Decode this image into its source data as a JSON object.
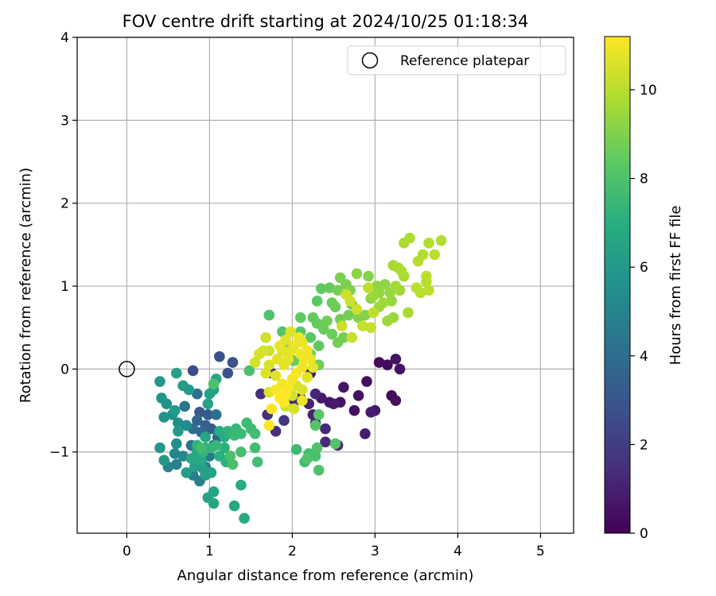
{
  "chart_data": {
    "type": "scatter",
    "title": "FOV centre drift starting at 2024/10/25 01:18:34",
    "xlabel": "Angular distance from reference (arcmin)",
    "ylabel": "Rotation from reference (arcmin)",
    "xlim": [
      -0.6,
      5.4
    ],
    "ylim": [
      -1.98,
      4.0
    ],
    "x_ticks": [
      0,
      1,
      2,
      3,
      4,
      5
    ],
    "y_ticks": [
      -1,
      0,
      1,
      2,
      3,
      4
    ],
    "x_tick_labels": [
      "0",
      "1",
      "2",
      "3",
      "4",
      "5"
    ],
    "y_tick_labels": [
      "−1",
      "0",
      "1",
      "2",
      "3",
      "4"
    ],
    "grid": true,
    "legend": {
      "location": "top-right",
      "label": "Reference platepar"
    },
    "reference_point": {
      "x": 0,
      "y": 0
    },
    "colorbar": {
      "label": "Hours from first FF file",
      "range": [
        0,
        11.2
      ],
      "ticks": [
        0,
        2,
        4,
        6,
        8,
        10
      ],
      "tick_labels": [
        "0",
        "2",
        "4",
        "6",
        "8",
        "10"
      ],
      "colormap": "viridis"
    },
    "points": [
      [
        3.05,
        0.08,
        0.3
      ],
      [
        3.15,
        0.05,
        0.3
      ],
      [
        3.2,
        -0.32,
        0.3
      ],
      [
        3.25,
        -0.38,
        0.4
      ],
      [
        2.9,
        -0.15,
        0.4
      ],
      [
        2.8,
        -0.32,
        0.5
      ],
      [
        2.75,
        -0.5,
        0.5
      ],
      [
        2.62,
        -0.22,
        0.6
      ],
      [
        2.58,
        -0.4,
        0.6
      ],
      [
        2.45,
        -0.4,
        0.7
      ],
      [
        2.35,
        -0.35,
        0.8
      ],
      [
        2.5,
        -0.42,
        0.8
      ],
      [
        2.95,
        -0.52,
        0.9
      ],
      [
        2.88,
        -0.78,
        0.9
      ],
      [
        3.3,
        0.0,
        0.5
      ],
      [
        3.25,
        0.12,
        0.6
      ],
      [
        3.0,
        -0.5,
        0.7
      ],
      [
        2.22,
        -0.05,
        0.9
      ],
      [
        2.1,
        -0.35,
        1.0
      ],
      [
        2.2,
        -0.42,
        1.1
      ],
      [
        2.25,
        -0.55,
        1.1
      ],
      [
        2.28,
        -0.65,
        1.2
      ],
      [
        2.4,
        -0.72,
        1.3
      ],
      [
        2.4,
        -0.88,
        1.3
      ],
      [
        2.55,
        -0.92,
        1.4
      ],
      [
        2.28,
        -0.3,
        1.2
      ],
      [
        2.02,
        -0.4,
        1.3
      ],
      [
        1.75,
        -0.05,
        1.4
      ],
      [
        1.8,
        -0.75,
        1.5
      ],
      [
        1.7,
        -0.55,
        1.6
      ],
      [
        1.9,
        -0.62,
        1.7
      ],
      [
        1.62,
        -0.3,
        1.5
      ],
      [
        0.8,
        -0.02,
        2.6
      ],
      [
        1.12,
        0.15,
        2.7
      ],
      [
        1.28,
        0.08,
        2.8
      ],
      [
        1.22,
        -0.05,
        2.9
      ],
      [
        0.88,
        -0.52,
        3.0
      ],
      [
        0.98,
        -0.55,
        3.2
      ],
      [
        1.02,
        -0.72,
        3.3
      ],
      [
        1.1,
        -0.82,
        3.4
      ],
      [
        0.95,
        -0.68,
        3.5
      ],
      [
        1.05,
        -0.92,
        3.6
      ],
      [
        0.85,
        -0.62,
        3.7
      ],
      [
        0.9,
        -0.76,
        3.8
      ],
      [
        0.8,
        -0.72,
        4.0
      ],
      [
        1.08,
        -0.55,
        4.1
      ],
      [
        0.85,
        -0.3,
        4.2
      ],
      [
        0.7,
        -0.45,
        4.3
      ],
      [
        0.78,
        -0.92,
        4.4
      ],
      [
        1.0,
        -1.05,
        4.5
      ],
      [
        0.95,
        -1.18,
        4.6
      ],
      [
        0.88,
        -1.35,
        4.7
      ],
      [
        0.8,
        -1.28,
        4.8
      ],
      [
        0.6,
        -1.15,
        4.9
      ],
      [
        0.5,
        -1.18,
        5.0
      ],
      [
        0.58,
        -1.02,
        5.1
      ],
      [
        0.68,
        -1.05,
        5.2
      ],
      [
        0.72,
        -0.68,
        5.3
      ],
      [
        0.62,
        -0.65,
        5.4
      ],
      [
        0.6,
        -0.9,
        5.5
      ],
      [
        0.55,
        -0.55,
        5.5
      ],
      [
        0.45,
        -0.58,
        5.6
      ],
      [
        0.48,
        -0.42,
        5.7
      ],
      [
        0.42,
        -0.35,
        5.8
      ],
      [
        0.4,
        -0.15,
        5.9
      ],
      [
        0.4,
        -0.95,
        5.9
      ],
      [
        0.45,
        -1.1,
        6.0
      ],
      [
        0.58,
        -0.5,
        6.0
      ],
      [
        0.62,
        -0.75,
        6.1
      ],
      [
        0.75,
        -0.25,
        6.1
      ],
      [
        0.68,
        -0.2,
        6.2
      ],
      [
        0.72,
        -1.25,
        6.2
      ],
      [
        0.82,
        -1.18,
        6.3
      ],
      [
        0.92,
        -1.2,
        6.3
      ],
      [
        0.95,
        -1.28,
        6.4
      ],
      [
        1.02,
        -1.25,
        6.4
      ],
      [
        0.98,
        -1.55,
        6.5
      ],
      [
        1.05,
        -1.48,
        6.5
      ],
      [
        1.05,
        -1.62,
        6.6
      ],
      [
        0.95,
        -0.82,
        6.6
      ],
      [
        0.85,
        -1.0,
        6.7
      ],
      [
        0.78,
        -1.08,
        6.7
      ],
      [
        0.9,
        -1.1,
        6.8
      ],
      [
        0.95,
        -0.95,
        6.8
      ],
      [
        0.6,
        -0.05,
        6.3
      ],
      [
        0.98,
        -0.42,
        6.4
      ],
      [
        1.0,
        -0.3,
        6.4
      ],
      [
        1.05,
        -0.25,
        6.5
      ],
      [
        1.08,
        -0.12,
        6.6
      ],
      [
        1.3,
        -1.65,
        6.7
      ],
      [
        1.42,
        -1.8,
        6.8
      ],
      [
        1.38,
        -1.4,
        6.9
      ],
      [
        1.12,
        -0.75,
        6.9
      ],
      [
        1.18,
        -0.82,
        7.0
      ],
      [
        1.12,
        -1.05,
        7.0
      ],
      [
        1.2,
        -1.12,
        7.1
      ],
      [
        1.18,
        -0.95,
        7.1
      ],
      [
        1.22,
        -0.75,
        7.2
      ],
      [
        0.85,
        -0.92,
        7.2
      ],
      [
        0.92,
        -1.0,
        7.3
      ],
      [
        1.02,
        -0.95,
        7.3
      ],
      [
        1.08,
        -0.92,
        7.4
      ],
      [
        1.32,
        -0.72,
        7.4
      ],
      [
        1.3,
        -0.8,
        7.5
      ],
      [
        1.38,
        -0.78,
        7.5
      ],
      [
        1.45,
        -0.65,
        7.6
      ],
      [
        1.5,
        -0.72,
        7.6
      ],
      [
        1.55,
        -0.78,
        7.7
      ],
      [
        1.55,
        -0.95,
        7.7
      ],
      [
        1.58,
        -1.12,
        7.8
      ],
      [
        1.38,
        -1.0,
        7.8
      ],
      [
        1.25,
        -1.05,
        7.9
      ],
      [
        1.28,
        -1.15,
        7.9
      ],
      [
        1.48,
        -0.02,
        7.9
      ],
      [
        1.05,
        -0.18,
        8.0
      ],
      [
        0.9,
        -0.95,
        7.7
      ],
      [
        2.05,
        -0.97,
        7.6
      ],
      [
        2.15,
        -1.12,
        7.7
      ],
      [
        2.2,
        -1.02,
        7.8
      ],
      [
        2.28,
        -1.05,
        7.9
      ],
      [
        2.3,
        -0.95,
        8.0
      ],
      [
        2.32,
        -1.22,
        8.0
      ],
      [
        2.52,
        -0.9,
        8.1
      ],
      [
        2.18,
        -1.08,
        8.1
      ],
      [
        2.28,
        -0.68,
        8.2
      ],
      [
        2.32,
        -0.55,
        8.3
      ],
      [
        1.72,
        0.65,
        8.0
      ],
      [
        1.88,
        0.45,
        8.1
      ],
      [
        2.1,
        0.45,
        8.2
      ],
      [
        2.22,
        0.38,
        8.3
      ],
      [
        2.32,
        0.28,
        8.4
      ],
      [
        2.1,
        0.62,
        8.4
      ],
      [
        2.25,
        0.62,
        8.5
      ],
      [
        2.3,
        0.55,
        8.5
      ],
      [
        2.38,
        0.48,
        8.6
      ],
      [
        2.48,
        0.42,
        8.6
      ],
      [
        2.42,
        0.58,
        8.7
      ],
      [
        2.58,
        0.6,
        8.7
      ],
      [
        2.62,
        0.38,
        8.8
      ],
      [
        2.55,
        0.32,
        8.8
      ],
      [
        2.32,
        0.05,
        8.7
      ],
      [
        2.22,
        0.18,
        8.6
      ],
      [
        2.02,
        0.1,
        8.6
      ],
      [
        1.92,
        0.28,
        8.5
      ],
      [
        2.3,
        0.82,
        8.3
      ],
      [
        2.35,
        0.97,
        8.4
      ],
      [
        2.45,
        0.98,
        8.5
      ],
      [
        2.48,
        0.8,
        8.6
      ],
      [
        2.52,
        0.75,
        8.6
      ],
      [
        2.72,
        0.78,
        8.7
      ],
      [
        2.68,
        0.65,
        8.8
      ],
      [
        2.55,
        0.95,
        8.8
      ],
      [
        2.58,
        1.1,
        8.9
      ],
      [
        2.65,
        1.02,
        8.9
      ],
      [
        2.7,
        0.95,
        9.0
      ],
      [
        2.8,
        0.62,
        9.0
      ],
      [
        2.88,
        0.65,
        9.1
      ],
      [
        2.92,
        1.12,
        9.1
      ],
      [
        2.78,
        1.15,
        9.2
      ],
      [
        2.95,
        0.85,
        9.2
      ],
      [
        3.05,
        0.92,
        9.3
      ],
      [
        3.02,
        1.0,
        9.3
      ],
      [
        3.12,
        1.02,
        9.3
      ],
      [
        3.18,
        0.92,
        9.4
      ],
      [
        3.2,
        0.82,
        9.4
      ],
      [
        3.22,
        0.62,
        9.4
      ],
      [
        3.15,
        0.58,
        9.5
      ],
      [
        3.05,
        0.75,
        9.5
      ],
      [
        2.98,
        0.88,
        9.5
      ],
      [
        3.1,
        0.8,
        9.6
      ],
      [
        3.25,
        1.0,
        9.6
      ],
      [
        3.3,
        0.95,
        9.6
      ],
      [
        3.35,
        1.12,
        9.7
      ],
      [
        3.4,
        0.68,
        9.7
      ],
      [
        3.22,
        1.25,
        9.7
      ],
      [
        3.28,
        1.22,
        9.8
      ],
      [
        3.32,
        1.18,
        9.8
      ],
      [
        3.35,
        1.52,
        9.8
      ],
      [
        3.42,
        1.58,
        9.8
      ],
      [
        3.52,
        1.3,
        9.9
      ],
      [
        3.58,
        1.38,
        9.9
      ],
      [
        3.65,
        1.52,
        9.9
      ],
      [
        3.8,
        1.55,
        9.9
      ],
      [
        3.72,
        1.38,
        10.0
      ],
      [
        3.5,
        0.98,
        10.0
      ],
      [
        3.55,
        0.92,
        10.0
      ],
      [
        3.62,
        1.05,
        10.0
      ],
      [
        3.62,
        1.12,
        10.1
      ],
      [
        3.65,
        0.95,
        10.1
      ],
      [
        2.92,
        0.98,
        10.1
      ],
      [
        2.98,
        0.68,
        10.1
      ],
      [
        2.85,
        0.52,
        10.2
      ],
      [
        2.95,
        0.5,
        10.2
      ],
      [
        2.72,
        0.38,
        10.2
      ],
      [
        2.78,
        0.72,
        10.3
      ],
      [
        2.6,
        0.52,
        10.3
      ],
      [
        2.65,
        0.9,
        10.3
      ],
      [
        2.7,
        0.82,
        10.3
      ],
      [
        1.68,
        0.38,
        10.4
      ],
      [
        1.72,
        0.22,
        10.4
      ],
      [
        1.65,
        0.22,
        10.5
      ],
      [
        1.6,
        0.18,
        10.5
      ],
      [
        1.55,
        0.08,
        10.5
      ],
      [
        1.72,
        0.05,
        10.6
      ],
      [
        1.68,
        -0.05,
        10.6
      ],
      [
        1.72,
        -0.28,
        10.6
      ],
      [
        1.8,
        -0.08,
        10.7
      ],
      [
        1.82,
        0.12,
        10.7
      ],
      [
        1.88,
        0.22,
        10.7
      ],
      [
        1.9,
        0.05,
        10.8
      ],
      [
        1.95,
        0.12,
        10.8
      ],
      [
        1.98,
        0.22,
        10.8
      ],
      [
        2.02,
        0.28,
        10.9
      ],
      [
        2.08,
        0.38,
        10.9
      ],
      [
        2.12,
        0.32,
        10.9
      ],
      [
        2.18,
        0.22,
        11.0
      ],
      [
        2.15,
        0.12,
        11.0
      ],
      [
        2.12,
        0.02,
        11.0
      ],
      [
        2.05,
        -0.05,
        11.1
      ],
      [
        2.0,
        -0.12,
        11.1
      ],
      [
        1.95,
        -0.22,
        11.1
      ],
      [
        1.92,
        -0.3,
        11.2
      ],
      [
        1.9,
        -0.4,
        11.2
      ],
      [
        1.85,
        -0.35,
        11.2
      ],
      [
        1.75,
        -0.48,
        11.2
      ],
      [
        1.72,
        -0.68,
        11.2
      ],
      [
        1.8,
        -0.25,
        11.1
      ],
      [
        1.88,
        -0.18,
        11.0
      ],
      [
        2.22,
        0.12,
        10.9
      ],
      [
        2.25,
        0.02,
        10.8
      ],
      [
        2.18,
        -0.1,
        10.7
      ],
      [
        2.12,
        -0.25,
        10.6
      ],
      [
        2.05,
        -0.2,
        10.5
      ],
      [
        2.0,
        -0.32,
        10.4
      ],
      [
        1.92,
        -0.45,
        10.4
      ],
      [
        2.02,
        -0.48,
        10.5
      ],
      [
        1.98,
        0.45,
        10.6
      ],
      [
        1.92,
        0.35,
        10.7
      ],
      [
        1.85,
        0.28,
        10.8
      ],
      [
        2.1,
        0.18,
        11.0
      ],
      [
        2.12,
        -0.38,
        10.9
      ]
    ]
  }
}
